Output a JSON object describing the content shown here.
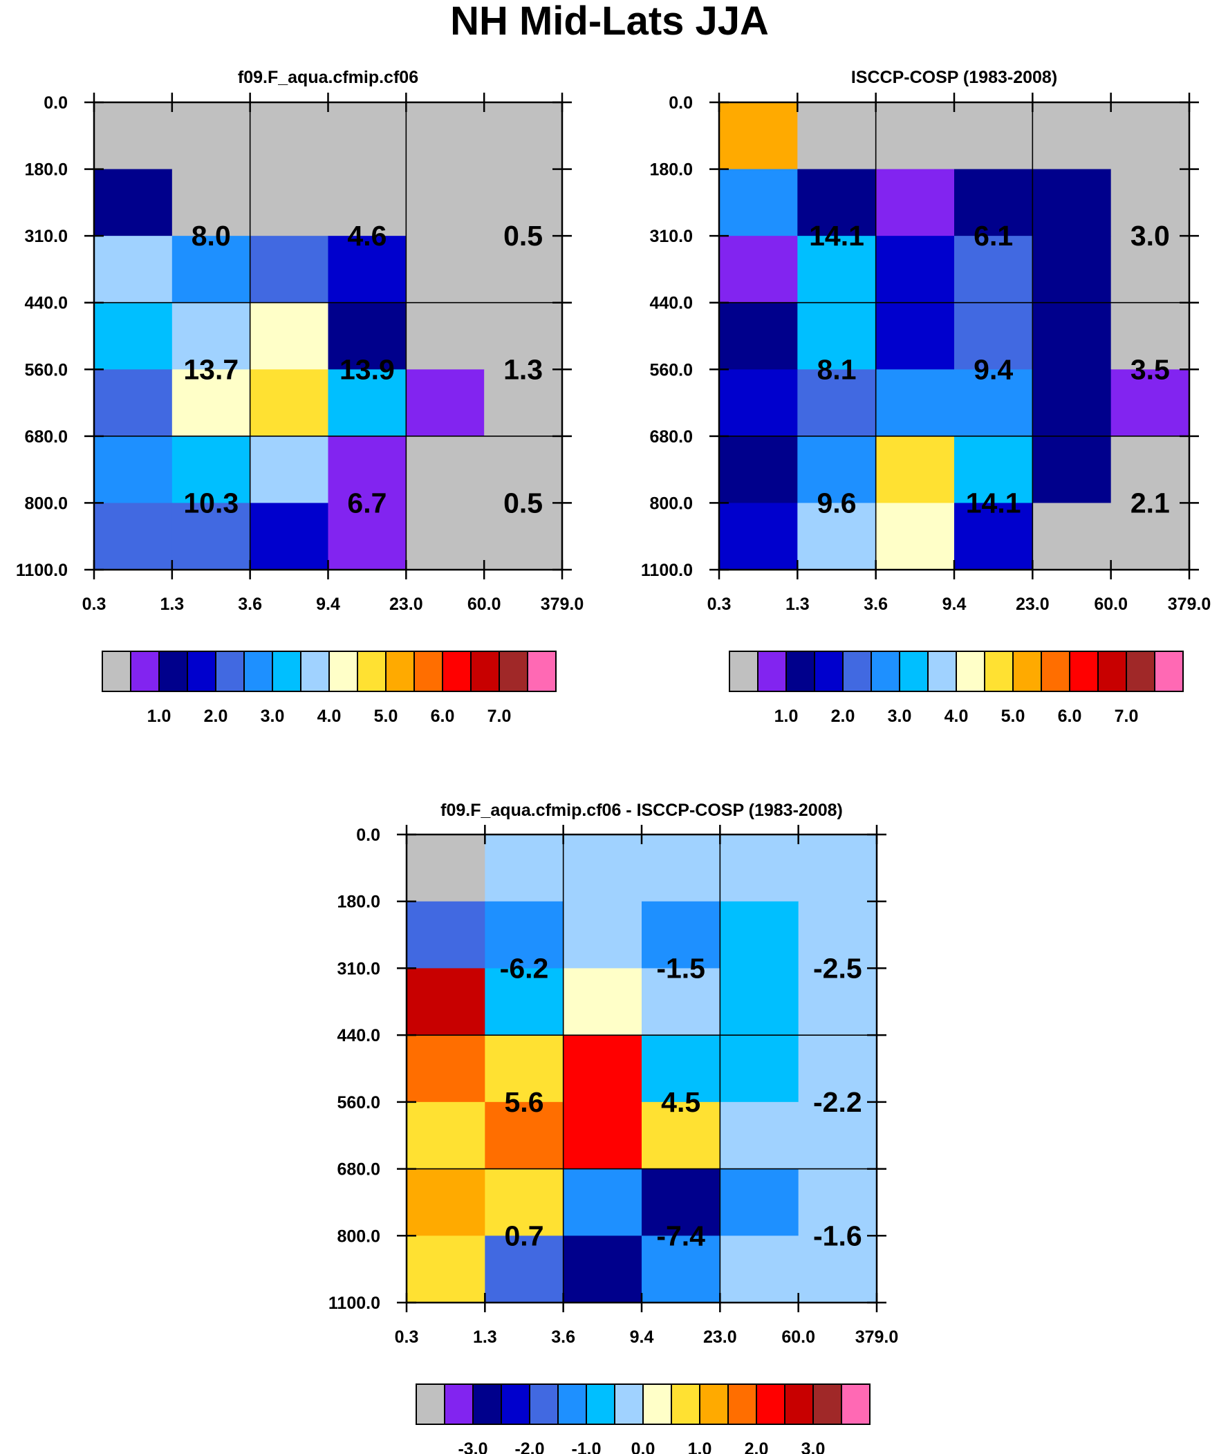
{
  "title": "NH Mid-Lats JJA",
  "chart_data": [
    {
      "type": "heatmap",
      "title": "f09.F_aqua.cfmip.cf06",
      "x_edges": [
        "0.3",
        "1.3",
        "3.6",
        "9.4",
        "23.0",
        "60.0",
        "379.0"
      ],
      "y_edges": [
        "0.0",
        "180.0",
        "310.0",
        "440.0",
        "560.0",
        "680.0",
        "800.0",
        "1100.0"
      ],
      "cell_levels": [
        [
          0,
          0,
          0,
          0,
          0,
          0
        ],
        [
          2,
          0,
          0,
          0,
          0,
          0
        ],
        [
          7,
          5,
          4,
          3,
          0,
          0
        ],
        [
          6,
          7,
          8,
          2,
          0,
          0
        ],
        [
          4,
          8,
          9,
          6,
          1,
          0
        ],
        [
          5,
          6,
          7,
          1,
          0,
          0
        ],
        [
          4,
          4,
          3,
          1,
          0,
          0
        ]
      ],
      "box_labels": [
        [
          "8.0",
          "4.6",
          "0.5"
        ],
        [
          "13.7",
          "13.9",
          "1.3"
        ],
        [
          "10.3",
          "6.7",
          "0.5"
        ]
      ],
      "colorbar_labels": [
        "1.0",
        "2.0",
        "3.0",
        "4.0",
        "5.0",
        "6.0",
        "7.0"
      ]
    },
    {
      "type": "heatmap",
      "title": "ISCCP-COSP (1983-2008)",
      "x_edges": [
        "0.3",
        "1.3",
        "3.6",
        "9.4",
        "23.0",
        "60.0",
        "379.0"
      ],
      "y_edges": [
        "0.0",
        "180.0",
        "310.0",
        "440.0",
        "560.0",
        "680.0",
        "800.0",
        "1100.0"
      ],
      "cell_levels": [
        [
          10,
          0,
          0,
          0,
          0,
          0
        ],
        [
          5,
          2,
          1,
          2,
          2,
          0
        ],
        [
          1,
          6,
          3,
          4,
          2,
          0
        ],
        [
          2,
          6,
          3,
          4,
          2,
          0
        ],
        [
          3,
          4,
          5,
          5,
          2,
          1
        ],
        [
          2,
          5,
          9,
          6,
          2,
          0
        ],
        [
          3,
          7,
          8,
          3,
          0,
          0
        ]
      ],
      "box_labels": [
        [
          "14.1",
          "6.1",
          "3.0"
        ],
        [
          "8.1",
          "9.4",
          "3.5"
        ],
        [
          "9.6",
          "14.1",
          "2.1"
        ]
      ],
      "colorbar_labels": [
        "1.0",
        "2.0",
        "3.0",
        "4.0",
        "5.0",
        "6.0",
        "7.0"
      ]
    },
    {
      "type": "heatmap",
      "title": "f09.F_aqua.cfmip.cf06 - ISCCP-COSP (1983-2008)",
      "x_edges": [
        "0.3",
        "1.3",
        "3.6",
        "9.4",
        "23.0",
        "60.0",
        "379.0"
      ],
      "y_edges": [
        "0.0",
        "180.0",
        "310.0",
        "440.0",
        "560.0",
        "680.0",
        "800.0",
        "1100.0"
      ],
      "cell_levels": [
        [
          0,
          7,
          7,
          7,
          7,
          7
        ],
        [
          4,
          5,
          7,
          5,
          6,
          7
        ],
        [
          13,
          6,
          8,
          7,
          6,
          7
        ],
        [
          11,
          9,
          12,
          6,
          6,
          7
        ],
        [
          9,
          11,
          12,
          9,
          7,
          7
        ],
        [
          10,
          9,
          5,
          2,
          5,
          7
        ],
        [
          9,
          4,
          2,
          5,
          7,
          7
        ]
      ],
      "box_labels": [
        [
          "-6.2",
          "-1.5",
          "-2.5"
        ],
        [
          "5.6",
          "4.5",
          "-2.2"
        ],
        [
          "0.7",
          "-7.4",
          "-1.6"
        ]
      ],
      "colorbar_labels": [
        "-3.0",
        "-2.0",
        "-1.0",
        "0.0",
        "1.0",
        "2.0",
        "3.0"
      ]
    }
  ],
  "palette": [
    "#c0c0c0",
    "#8224f0",
    "#00008c",
    "#0000cd",
    "#4169e1",
    "#1e90ff",
    "#00bfff",
    "#a0d2ff",
    "#ffffc8",
    "#ffe132",
    "#ffaa00",
    "#ff6e00",
    "#ff0000",
    "#c80000",
    "#a02828",
    "#ff69b4"
  ]
}
